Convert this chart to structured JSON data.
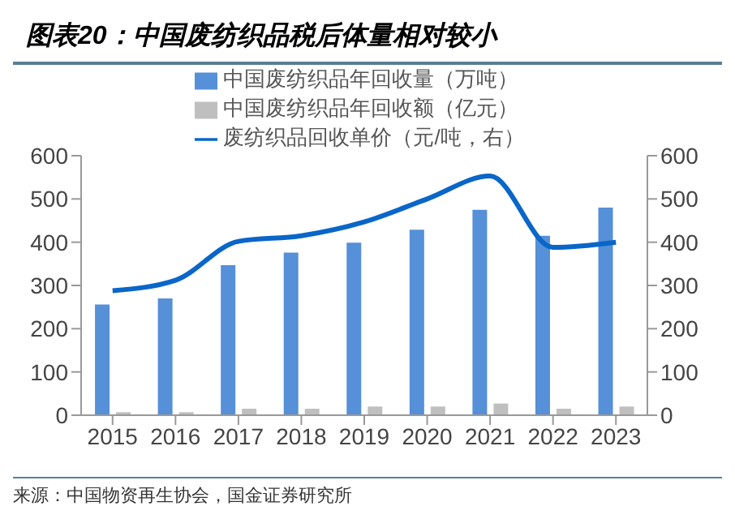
{
  "chart_data": {
    "type": "bar",
    "title": "图表20：中国废纺织品税后体量相对较小",
    "categories": [
      "2015",
      "2016",
      "2017",
      "2018",
      "2019",
      "2020",
      "2021",
      "2022",
      "2023"
    ],
    "series": [
      {
        "name": "中国废纺织品年回收量（万吨）",
        "color": "#5590d8",
        "values": [
          256,
          270,
          347,
          376,
          399,
          429,
          475,
          415,
          480
        ]
      },
      {
        "name": "中国废纺织品年回收额（亿元）",
        "color": "#bfbfbf",
        "values": [
          7,
          7,
          15,
          15,
          20,
          20,
          27,
          15,
          20
        ]
      },
      {
        "name": "废纺织品回收单价（元/吨，右）",
        "type": "line",
        "axis": "y2",
        "color": "#0a66c8",
        "values": [
          288,
          312,
          402,
          415,
          447,
          500,
          553,
          388,
          400
        ]
      }
    ],
    "ylim": [
      0,
      600
    ],
    "yticks": [
      0,
      100,
      200,
      300,
      400,
      500,
      600
    ],
    "y2lim": [
      0,
      600
    ],
    "y2ticks": [
      0,
      100,
      200,
      300,
      400,
      500,
      600
    ],
    "grid": false,
    "legend": "top",
    "marker": "none",
    "annotations": [
      "来源：中国物资再生协会，国金证券研究所"
    ]
  }
}
